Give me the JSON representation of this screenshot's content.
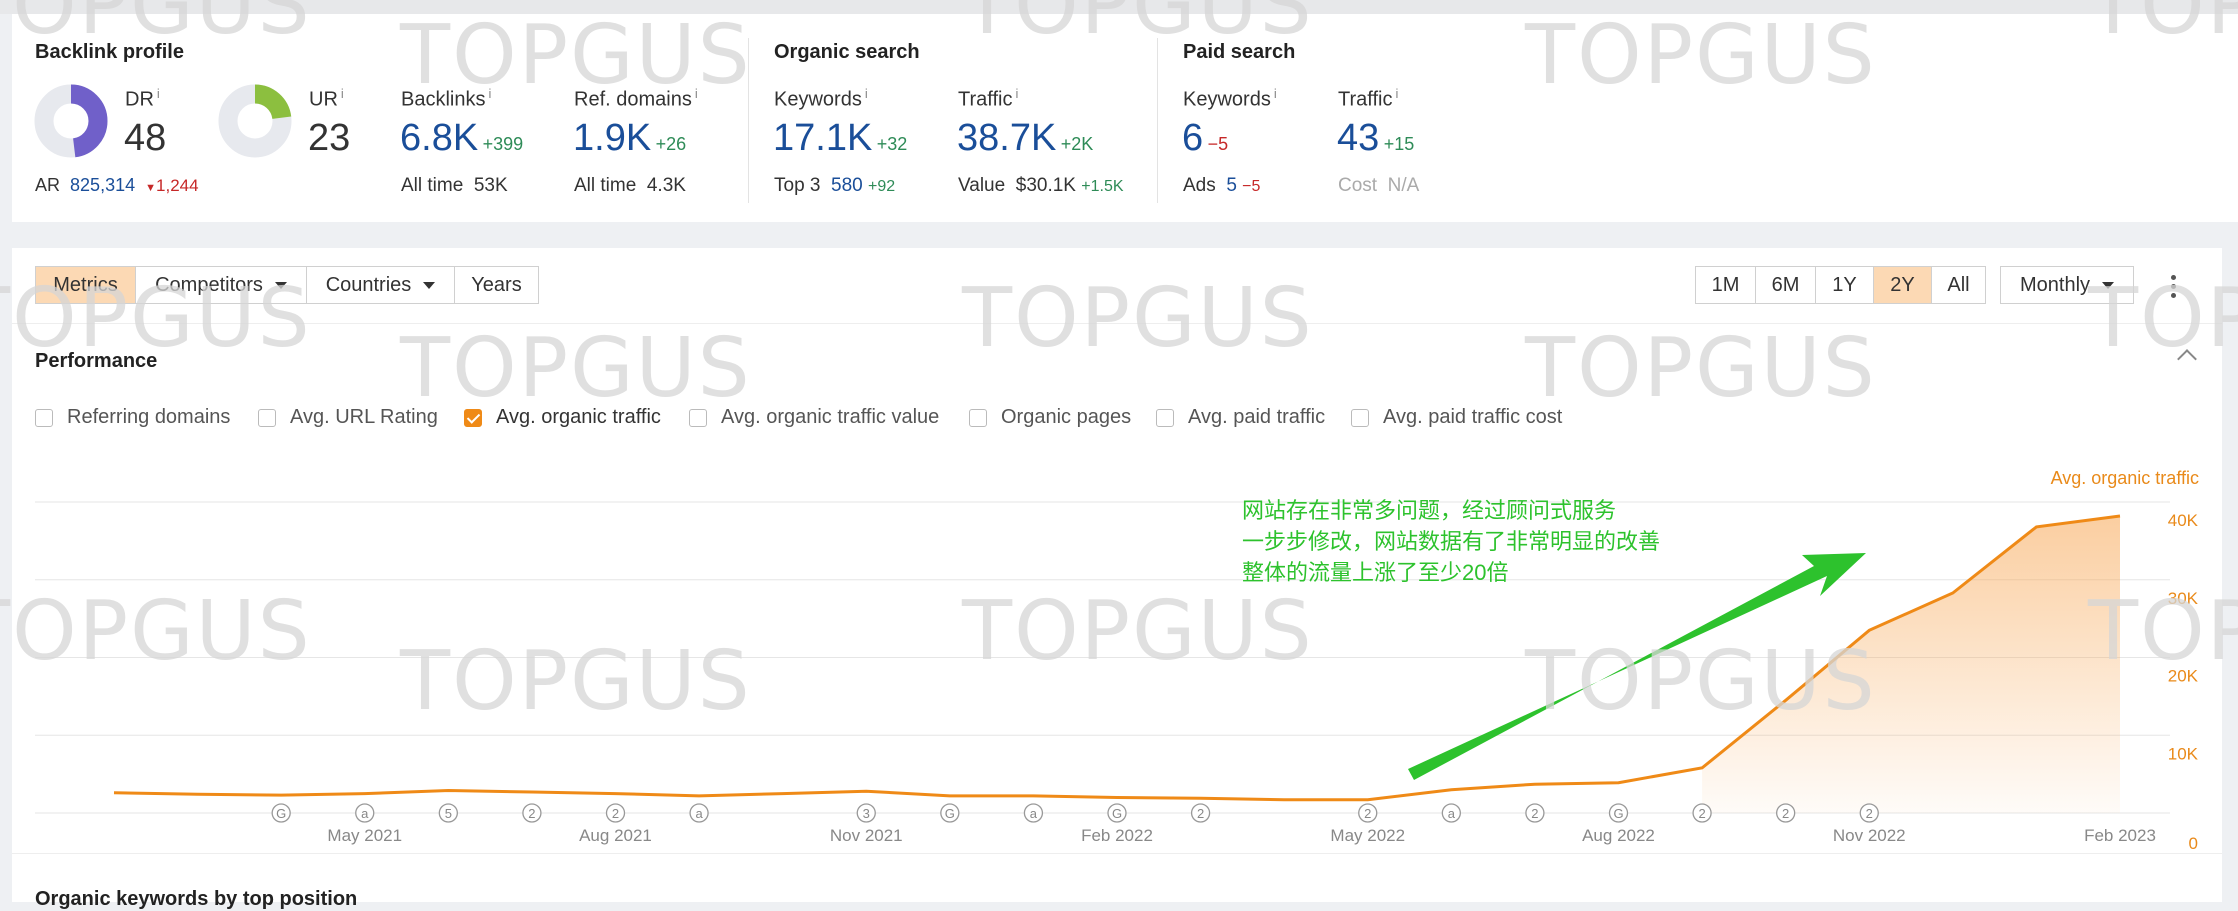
{
  "backlink": {
    "title": "Backlink profile",
    "dr": {
      "label": "DR",
      "value": "48",
      "fill": 0.48,
      "color": "#7060c9"
    },
    "ur": {
      "label": "UR",
      "value": "23",
      "fill": 0.23,
      "color": "#8cbf3f"
    },
    "ar": {
      "label": "AR",
      "value": "825,314",
      "delta": "1,244"
    },
    "backlinks": {
      "label": "Backlinks",
      "value": "6.8K",
      "delta": "+399",
      "alltime_label": "All time",
      "alltime": "53K"
    },
    "refdomains": {
      "label": "Ref. domains",
      "value": "1.9K",
      "delta": "+26",
      "alltime_label": "All time",
      "alltime": "4.3K"
    }
  },
  "organic": {
    "title": "Organic search",
    "keywords": {
      "label": "Keywords",
      "value": "17.1K",
      "delta": "+32",
      "top3_label": "Top 3",
      "top3": "580",
      "top3_delta": "+92"
    },
    "traffic": {
      "label": "Traffic",
      "value": "38.7K",
      "delta": "+2K",
      "value_label": "Value",
      "value_amount": "$30.1K",
      "value_delta": "+1.5K"
    }
  },
  "paid": {
    "title": "Paid search",
    "keywords": {
      "label": "Keywords",
      "value": "6",
      "delta": "−5",
      "ads_label": "Ads",
      "ads": "5",
      "ads_delta": "−5"
    },
    "traffic": {
      "label": "Traffic",
      "value": "43",
      "delta": "+15",
      "cost_label": "Cost",
      "cost": "N/A"
    }
  },
  "info_glyph": "i",
  "toolbar": {
    "metrics": "Metrics",
    "competitors": "Competitors",
    "countries": "Countries",
    "years": "Years",
    "ranges": [
      "1M",
      "6M",
      "1Y",
      "2Y",
      "All"
    ],
    "active_range": "2Y",
    "interval": "Monthly"
  },
  "performance": {
    "title": "Performance",
    "checkboxes": [
      {
        "label": "Referring domains",
        "checked": false
      },
      {
        "label": "Avg. URL Rating",
        "checked": false
      },
      {
        "label": "Avg. organic traffic",
        "checked": true
      },
      {
        "label": "Avg. organic traffic value",
        "checked": false
      },
      {
        "label": "Organic pages",
        "checked": false
      },
      {
        "label": "Avg. paid traffic",
        "checked": false
      },
      {
        "label": "Avg. paid traffic cost",
        "checked": false
      }
    ]
  },
  "annotation": {
    "line1": "网站存在非常多问题，经过顾问式服务",
    "line2": "一步步修改，网站数据有了非常明显的改善",
    "line3": "整体的流量上涨了至少20倍"
  },
  "watermark": "TOPGUS",
  "next_section": "Organic keywords by top position",
  "chart_data": {
    "type": "area",
    "series": [
      {
        "name": "Avg. organic traffic",
        "color": "#ef8a17"
      }
    ],
    "x": [
      "2021-02",
      "2021-03",
      "2021-04",
      "2021-05",
      "2021-06",
      "2021-07",
      "2021-08",
      "2021-09",
      "2021-10",
      "2021-11",
      "2021-12",
      "2022-01",
      "2022-02",
      "2022-03",
      "2022-04",
      "2022-05",
      "2022-06",
      "2022-07",
      "2022-08",
      "2022-09",
      "2022-10",
      "2022-11",
      "2022-12",
      "2023-01",
      "2023-02"
    ],
    "values": [
      2600,
      2400,
      2300,
      2500,
      2900,
      2700,
      2500,
      2200,
      2500,
      2800,
      2200,
      2200,
      2000,
      1900,
      1700,
      1700,
      3000,
      3700,
      3900,
      5800,
      14500,
      23500,
      28300,
      36800,
      38200
    ],
    "ylim": [
      0,
      40000
    ],
    "yticks": [
      "0",
      "10K",
      "20K",
      "30K",
      "40K"
    ],
    "xticks": [
      "May 2021",
      "Aug 2021",
      "Nov 2021",
      "Feb 2022",
      "May 2022",
      "Aug 2022",
      "Nov 2022",
      "Feb 2023"
    ],
    "ylabel": "Avg. organic traffic",
    "events": [
      "G",
      "a",
      "5",
      "2",
      "2",
      "a",
      "3",
      "G",
      "a",
      "G",
      "2",
      "2",
      "a",
      "2",
      "G",
      "2",
      "2",
      "2"
    ]
  }
}
